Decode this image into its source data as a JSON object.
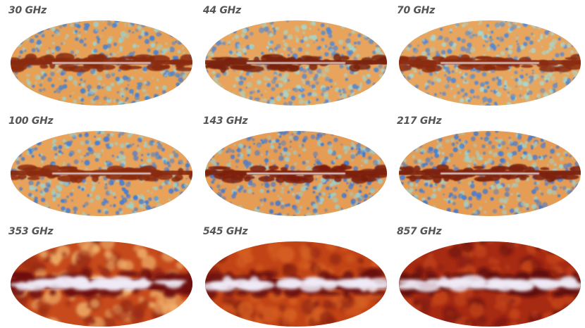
{
  "maps": [
    {
      "label": "30 GHz",
      "kind": "cmb",
      "bg": "#e6a157",
      "band": "#8a2a10",
      "core": "#f0eef5",
      "spot1": "#3f7fd8",
      "spot2": "#9ed3cf"
    },
    {
      "label": "44 GHz",
      "kind": "cmb",
      "bg": "#e8a45c",
      "band": "#7a2410",
      "core": "#f0eef5",
      "spot1": "#4a86da",
      "spot2": "#a4d6cc"
    },
    {
      "label": "70 GHz",
      "kind": "cmb",
      "bg": "#e7a55e",
      "band": "#8b2b12",
      "core": "#f0eef5",
      "spot1": "#4a88dc",
      "spot2": "#a8d8d0"
    },
    {
      "label": "100 GHz",
      "kind": "cmb",
      "bg": "#e8a25a",
      "band": "#8b2a10",
      "core": "#f0eef5",
      "spot1": "#3c7bd8",
      "spot2": "#9dd3cd"
    },
    {
      "label": "143 GHz",
      "kind": "cmb",
      "bg": "#e59c55",
      "band": "#7d200c",
      "core": "#f3f1f8",
      "spot1": "#3a77d6",
      "spot2": "#9bcfcb"
    },
    {
      "label": "217 GHz",
      "kind": "cmb",
      "bg": "#e59d55",
      "band": "#7d220e",
      "core": "#f3f1f8",
      "spot1": "#3c79d7",
      "spot2": "#9fd2cc"
    },
    {
      "label": "353 GHz",
      "kind": "dust",
      "bg": "#c64a1c",
      "band": "#6e1010",
      "core": "#eeeaf6",
      "spot1": "#f0b06a",
      "spot2": "#9a2a14"
    },
    {
      "label": "545 GHz",
      "kind": "dust",
      "bg": "#c24416",
      "band": "#6a0e0e",
      "core": "#eeeaf6",
      "spot1": "#d65f22",
      "spot2": "#8e2412"
    },
    {
      "label": "857 GHz",
      "kind": "dust",
      "bg": "#a72a12",
      "band": "#600c0c",
      "core": "#eeeaf6",
      "spot1": "#c4441a",
      "spot2": "#7a1810"
    }
  ]
}
